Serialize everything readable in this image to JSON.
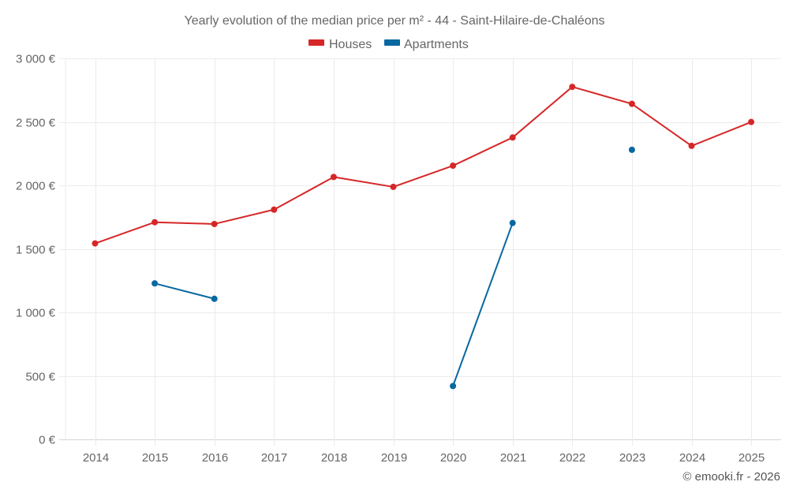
{
  "chart_data": {
    "type": "line",
    "title": "Yearly evolution of the median price per m² - 44 - Saint-Hilaire-de-Chaléons",
    "xlabel": "",
    "ylabel": "",
    "x": [
      "2014",
      "2015",
      "2016",
      "2017",
      "2018",
      "2019",
      "2020",
      "2021",
      "2022",
      "2023",
      "2024",
      "2025"
    ],
    "ylim": [
      0,
      3000
    ],
    "yticks": [
      0,
      500,
      1000,
      1500,
      2000,
      2500,
      3000
    ],
    "ytick_labels": [
      "0 €",
      "500 €",
      "1 000 €",
      "1 500 €",
      "2 000 €",
      "2 500 €",
      "3 000 €"
    ],
    "grid": true,
    "legend_position": "top-center",
    "series": [
      {
        "name": "Houses",
        "color": "#d62728",
        "values": [
          1543,
          1710,
          1696,
          1809,
          2066,
          1988,
          2155,
          2377,
          2776,
          2642,
          2311,
          2499
        ]
      },
      {
        "name": "Apartments",
        "color": "#0868a0",
        "values": [
          null,
          1228,
          1107,
          null,
          null,
          null,
          420,
          1704,
          null,
          2280,
          null,
          null
        ]
      }
    ],
    "credit": "© emooki.fr - 2026"
  }
}
